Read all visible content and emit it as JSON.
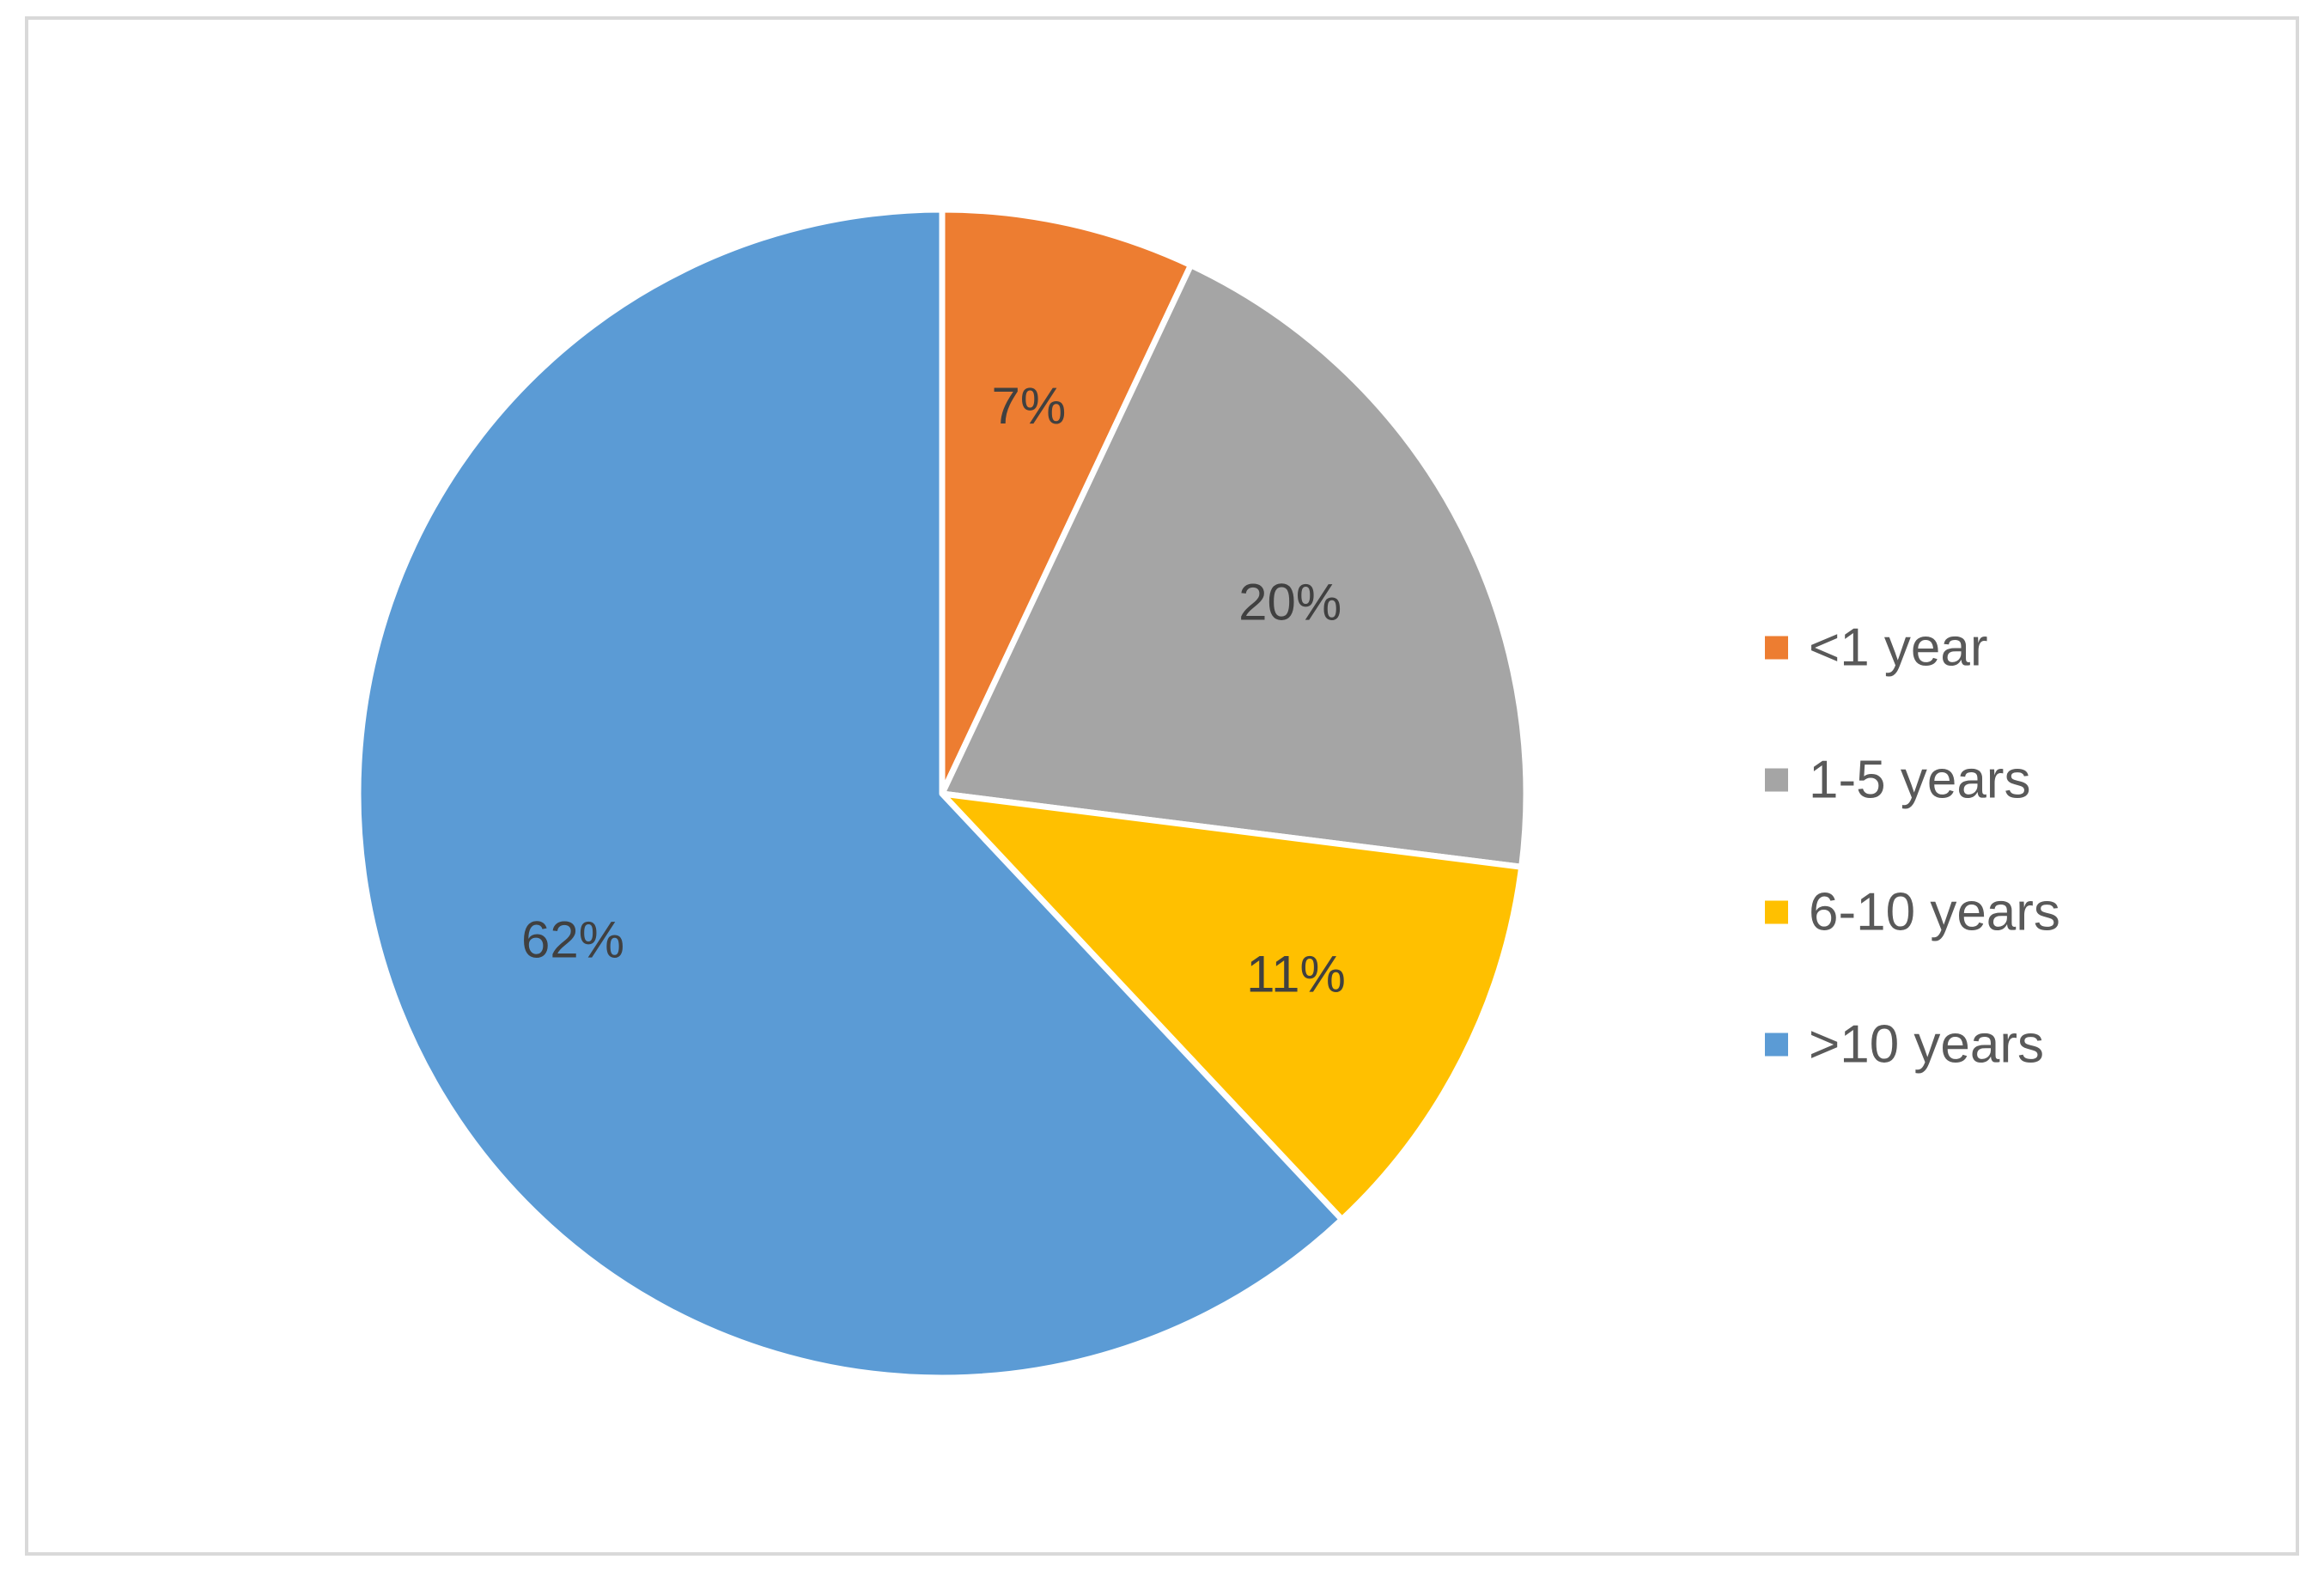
{
  "chart_data": {
    "type": "pie",
    "title": "",
    "legend_position": "right",
    "start_angle": "12 o'clock",
    "direction": "clockwise",
    "slices": [
      {
        "label": "<1 year",
        "value": 7,
        "display": "7%",
        "color": "#ED7D31"
      },
      {
        "label": "1-5 years",
        "value": 20,
        "display": "20%",
        "color": "#A5A5A5"
      },
      {
        "label": "6-10 years",
        "value": 11,
        "display": "11%",
        "color": "#FFC000"
      },
      {
        "label": ">10 years",
        "value": 62,
        "display": "62%",
        "color": "#5B9BD5"
      }
    ]
  }
}
